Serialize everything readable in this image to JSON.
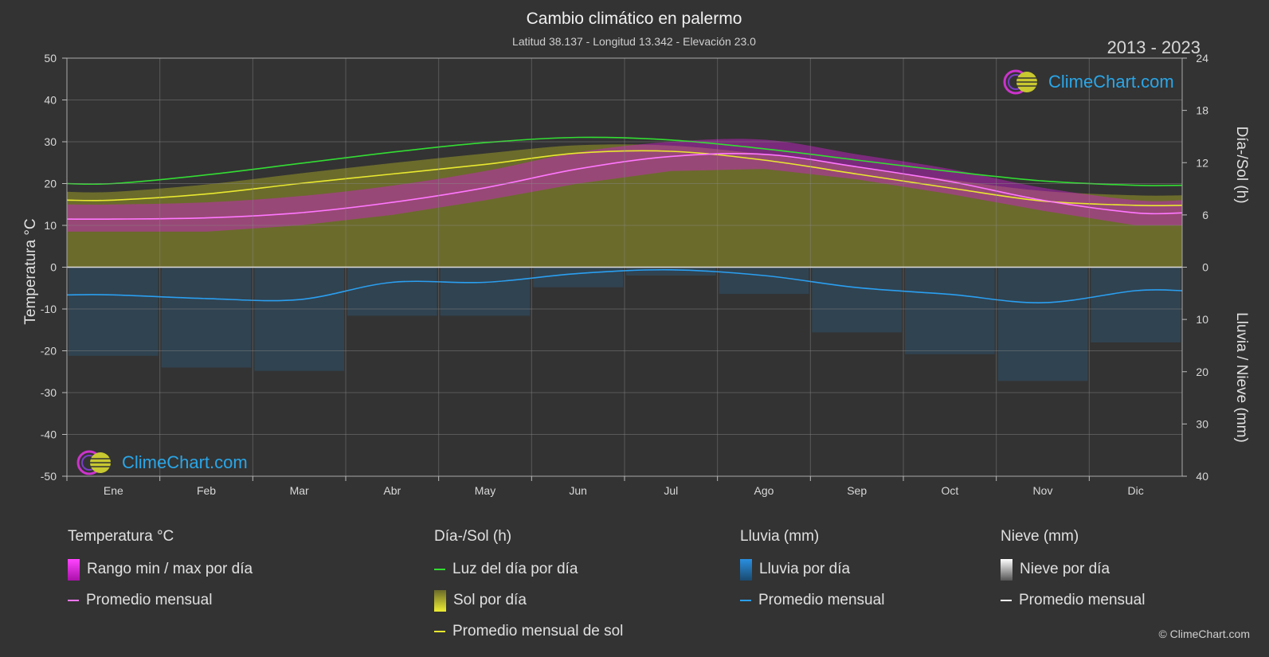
{
  "title": "Cambio climático en palermo",
  "subtitle": "Latitud 38.137 - Longitud 13.342 - Elevación 23.0",
  "year_range": "2013 - 2023",
  "logo_text": "ClimeChart.com",
  "copyright": "© ClimeChart.com",
  "colors": {
    "background": "#333333",
    "temp_range": "#d020d0",
    "temp_avg": "#ff77ff",
    "daylight": "#33dd33",
    "sunshine_fill": "#8a8a2a",
    "sunshine_avg": "#e8e830",
    "rain": "#2a7fbf",
    "rain_avg": "#2a9ff0",
    "snow_avg": "#ffffff"
  },
  "legend": {
    "temperature": {
      "title": "Temperatura °C",
      "items": [
        "Rango min / max por día",
        "Promedio mensual"
      ]
    },
    "sun": {
      "title": "Día-/Sol (h)",
      "items": [
        "Luz del día por día",
        "Sol por día",
        "Promedio mensual de sol"
      ]
    },
    "rain": {
      "title": "Lluvia (mm)",
      "items": [
        "Lluvia por día",
        "Promedio mensual"
      ]
    },
    "snow": {
      "title": "Nieve (mm)",
      "items": [
        "Nieve por día",
        "Promedio mensual"
      ]
    }
  },
  "chart_data": {
    "type": "area",
    "months": [
      "Ene",
      "Feb",
      "Mar",
      "Abr",
      "May",
      "Jun",
      "Jul",
      "Ago",
      "Sep",
      "Oct",
      "Nov",
      "Dic"
    ],
    "y_left": {
      "label": "Temperatura °C",
      "min": -50,
      "max": 50,
      "ticks": [
        50,
        40,
        30,
        20,
        10,
        0,
        -10,
        -20,
        -30,
        -40,
        -50
      ]
    },
    "y_right_top": {
      "label": "Día-/Sol (h)",
      "min": 0,
      "max": 24,
      "ticks": [
        24,
        18,
        12,
        6,
        0
      ]
    },
    "y_right_bottom": {
      "label": "Lluvia / Nieve (mm)",
      "min": 0,
      "max": 40,
      "ticks": [
        0,
        10,
        20,
        30,
        40
      ]
    },
    "grid": true,
    "series": [
      {
        "name": "Luz del día por día",
        "unit": "h",
        "values": [
          9.6,
          10.6,
          11.9,
          13.2,
          14.3,
          14.9,
          14.6,
          13.6,
          12.3,
          11.0,
          9.9,
          9.4
        ]
      },
      {
        "name": "Promedio mensual de sol",
        "unit": "h",
        "values": [
          7.7,
          8.4,
          9.6,
          10.7,
          11.8,
          13.1,
          13.3,
          12.3,
          10.7,
          9.1,
          7.6,
          7.1
        ]
      },
      {
        "name": "Promedio mensual",
        "kind": "temperature",
        "unit": "°C",
        "values": [
          11.5,
          11.8,
          13.0,
          15.5,
          19.0,
          23.5,
          26.5,
          27.0,
          24.0,
          20.5,
          16.0,
          13.0
        ]
      },
      {
        "name": "Rango min / max por día",
        "unit": "°C",
        "min": [
          8.5,
          8.5,
          10.0,
          12.5,
          16.0,
          20.0,
          23.0,
          23.5,
          21.0,
          17.5,
          13.5,
          10.0
        ],
        "max": [
          15.0,
          15.5,
          17.0,
          19.5,
          23.0,
          27.5,
          30.0,
          30.5,
          27.0,
          23.5,
          19.0,
          16.0
        ]
      },
      {
        "name": "Promedio mensual",
        "kind": "rain",
        "unit": "mm",
        "values": [
          5.3,
          6.0,
          6.2,
          2.9,
          2.9,
          1.2,
          0.5,
          1.6,
          3.9,
          5.2,
          6.8,
          4.5
        ]
      }
    ]
  }
}
